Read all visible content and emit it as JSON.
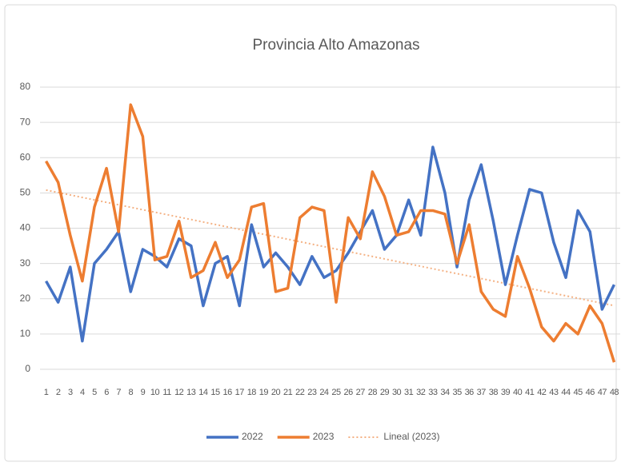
{
  "chart_data": {
    "type": "line",
    "title": "Provincia Alto Amazonas",
    "categories": [
      "1",
      "2",
      "3",
      "4",
      "5",
      "6",
      "7",
      "8",
      "9",
      "10",
      "11",
      "12",
      "13",
      "14",
      "15",
      "16",
      "17",
      "18",
      "19",
      "20",
      "21",
      "22",
      "23",
      "24",
      "25",
      "26",
      "27",
      "28",
      "29",
      "30",
      "31",
      "32",
      "33",
      "34",
      "35",
      "36",
      "37",
      "38",
      "39",
      "40",
      "41",
      "42",
      "43",
      "44",
      "45",
      "46",
      "47",
      "48"
    ],
    "series": [
      {
        "name": "2022",
        "color": "#4472c4",
        "values": [
          25,
          19,
          29,
          8,
          30,
          34,
          39,
          22,
          34,
          32,
          29,
          37,
          35,
          18,
          30,
          32,
          18,
          41,
          29,
          33,
          29,
          24,
          32,
          26,
          28,
          33,
          39,
          45,
          34,
          38,
          48,
          38,
          63,
          50,
          29,
          48,
          58,
          42,
          24,
          38,
          51,
          50,
          36,
          26,
          45,
          39,
          17,
          24
        ]
      },
      {
        "name": "2023",
        "color": "#ed7d31",
        "values": [
          59,
          53,
          38,
          25,
          46,
          57,
          39,
          75,
          66,
          31,
          32,
          42,
          26,
          28,
          36,
          26,
          31,
          46,
          47,
          22,
          23,
          43,
          46,
          45,
          19,
          43,
          37,
          56,
          49,
          38,
          39,
          45,
          45,
          44,
          30,
          41,
          22,
          17,
          15,
          32,
          23,
          12,
          8,
          13,
          10,
          18,
          13,
          2
        ]
      }
    ],
    "trendline": {
      "name": "Lineal (2023)",
      "color": "#f4b183",
      "of": 1
    },
    "ylim": [
      0,
      80
    ],
    "yticks": [
      0,
      10,
      20,
      30,
      40,
      50,
      60,
      70,
      80
    ],
    "grid": true,
    "legend": "bottom"
  }
}
